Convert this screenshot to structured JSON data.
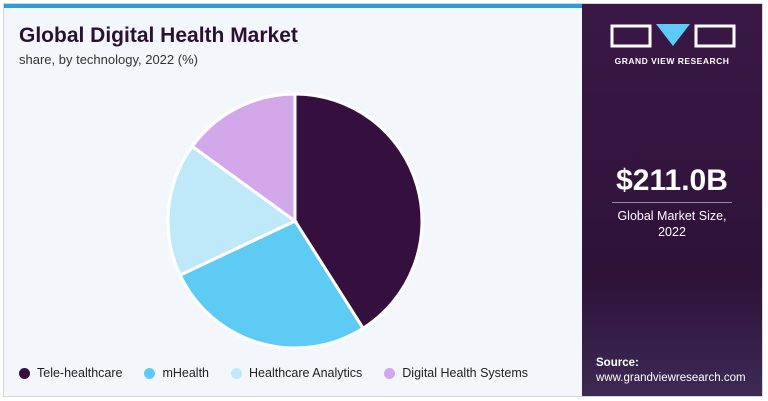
{
  "chart_data": {
    "type": "pie",
    "title": "Global Digital Health Market",
    "subtitle": "share, by technology, 2022 (%)",
    "categories": [
      "Tele-healthcare",
      "mHealth",
      "Healthcare Analytics",
      "Digital Health Systems"
    ],
    "values": [
      41,
      27,
      17,
      15
    ],
    "colors": [
      "#35103f",
      "#5ecbf5",
      "#bfe9f9",
      "#d3a8ea"
    ],
    "legend": "bottom"
  },
  "brand": "GRAND VIEW RESEARCH",
  "panel": {
    "market_size": "$211.0B",
    "market_size_label": "Global Market Size, 2022",
    "source_label": "Source:",
    "source_url": "www.grandviewresearch.com"
  }
}
